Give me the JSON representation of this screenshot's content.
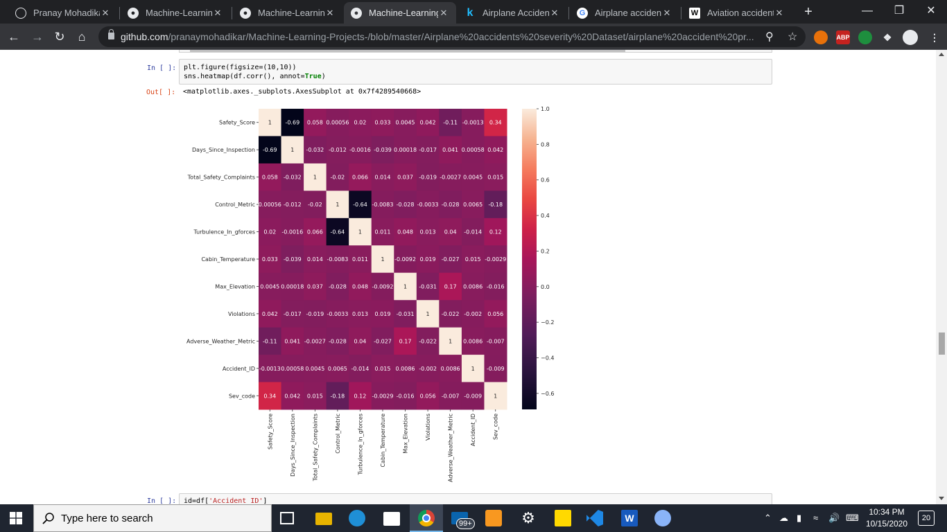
{
  "tabs": [
    {
      "title": "Pranay Mohadikar",
      "icon": "globe-icon"
    },
    {
      "title": "Machine-Learning",
      "icon": "github-icon"
    },
    {
      "title": "Machine-Learning",
      "icon": "github-icon"
    },
    {
      "title": "Machine-Learning",
      "icon": "github-icon",
      "active": true
    },
    {
      "title": "Airplane Accidents",
      "icon": "kaggle-icon"
    },
    {
      "title": "Airplane accidents",
      "icon": "google-icon"
    },
    {
      "title": "Aviation accidents",
      "icon": "wikipedia-icon"
    }
  ],
  "tab_close": "✕",
  "new_tab": "+",
  "window": {
    "minimize": "—",
    "restore": "❐",
    "close": "✕"
  },
  "toolbar": {
    "url_host": "github.com",
    "url_path": "/pranaymohadikar/Machine-Learning-Projects-/blob/master/Airplane%20accidents%20severity%20Dataset/airplane%20accident%20pr...",
    "ext_abp": "ABP"
  },
  "notebook": {
    "cell1_prompt": "In [ ]:",
    "cell1_line1": "plt.figure(figsize=(10,10))",
    "cell1_line2_pre": "sns.heatmap(df.corr(), annot=",
    "cell1_line2_kw": "True",
    "cell1_line2_post": ")",
    "out_prompt": "Out[ ]:",
    "out_text": "<matplotlib.axes._subplots.AxesSubplot at 0x7f4289540668>",
    "cell2_prompt": "In [ ]:",
    "cell2_pre": "id=df[",
    "cell2_str": "'Accident_ID'",
    "cell2_post": "]"
  },
  "chart_data": {
    "type": "heatmap",
    "labels": [
      "Safety_Score",
      "Days_Since_Inspection",
      "Total_Safety_Complaints",
      "Control_Metric",
      "Turbulence_In_gforces",
      "Cabin_Temperature",
      "Max_Elevation",
      "Violations",
      "Adverse_Weather_Metric",
      "Accident_ID",
      "Sev_code"
    ],
    "values": [
      [
        1,
        -0.69,
        0.058,
        0.00056,
        0.02,
        0.033,
        0.0045,
        0.042,
        -0.11,
        -0.0013,
        0.34
      ],
      [
        -0.69,
        1,
        -0.032,
        -0.012,
        -0.0016,
        -0.039,
        0.00018,
        -0.017,
        0.041,
        0.00058,
        0.042
      ],
      [
        0.058,
        -0.032,
        1,
        -0.02,
        0.066,
        0.014,
        0.037,
        -0.019,
        -0.0027,
        0.0045,
        0.015
      ],
      [
        0.00056,
        -0.012,
        -0.02,
        1,
        -0.64,
        -0.0083,
        -0.028,
        -0.0033,
        -0.028,
        0.0065,
        -0.18
      ],
      [
        0.02,
        -0.0016,
        0.066,
        -0.64,
        1,
        0.011,
        0.048,
        0.013,
        0.04,
        -0.014,
        0.12
      ],
      [
        0.033,
        -0.039,
        0.014,
        -0.0083,
        0.011,
        1,
        -0.0092,
        0.019,
        -0.027,
        0.015,
        -0.0029
      ],
      [
        0.0045,
        0.00018,
        0.037,
        -0.028,
        0.048,
        -0.0092,
        1,
        -0.031,
        0.17,
        0.0086,
        -0.016
      ],
      [
        0.042,
        -0.017,
        -0.019,
        -0.0033,
        0.013,
        0.019,
        -0.031,
        1,
        -0.022,
        -0.002,
        0.056
      ],
      [
        -0.11,
        0.041,
        -0.0027,
        -0.028,
        0.04,
        -0.027,
        0.17,
        -0.022,
        1,
        0.0086,
        -0.007
      ],
      [
        -0.0013,
        0.00058,
        0.0045,
        0.0065,
        -0.014,
        0.015,
        0.0086,
        -0.002,
        0.0086,
        1,
        -0.009
      ],
      [
        0.34,
        0.042,
        0.015,
        -0.18,
        0.12,
        -0.0029,
        -0.016,
        0.056,
        -0.007,
        -0.009,
        1
      ]
    ],
    "colorbar": {
      "min": -0.69,
      "max": 1.0,
      "ticks": [
        "1.0",
        "0.8",
        "0.6",
        "0.4",
        "0.2",
        "0.0",
        "−0.2",
        "−0.4",
        "−0.6"
      ],
      "tick_values": [
        1.0,
        0.8,
        0.6,
        0.4,
        0.2,
        0.0,
        -0.2,
        -0.4,
        -0.6
      ]
    },
    "colormap": "rocket",
    "title": "",
    "xlabel": "",
    "ylabel": ""
  },
  "taskbar": {
    "search_placeholder": "Type here to search",
    "badge_mail": "99+",
    "time": "10:34 PM",
    "date": "10/15/2020",
    "notifications": "20"
  }
}
